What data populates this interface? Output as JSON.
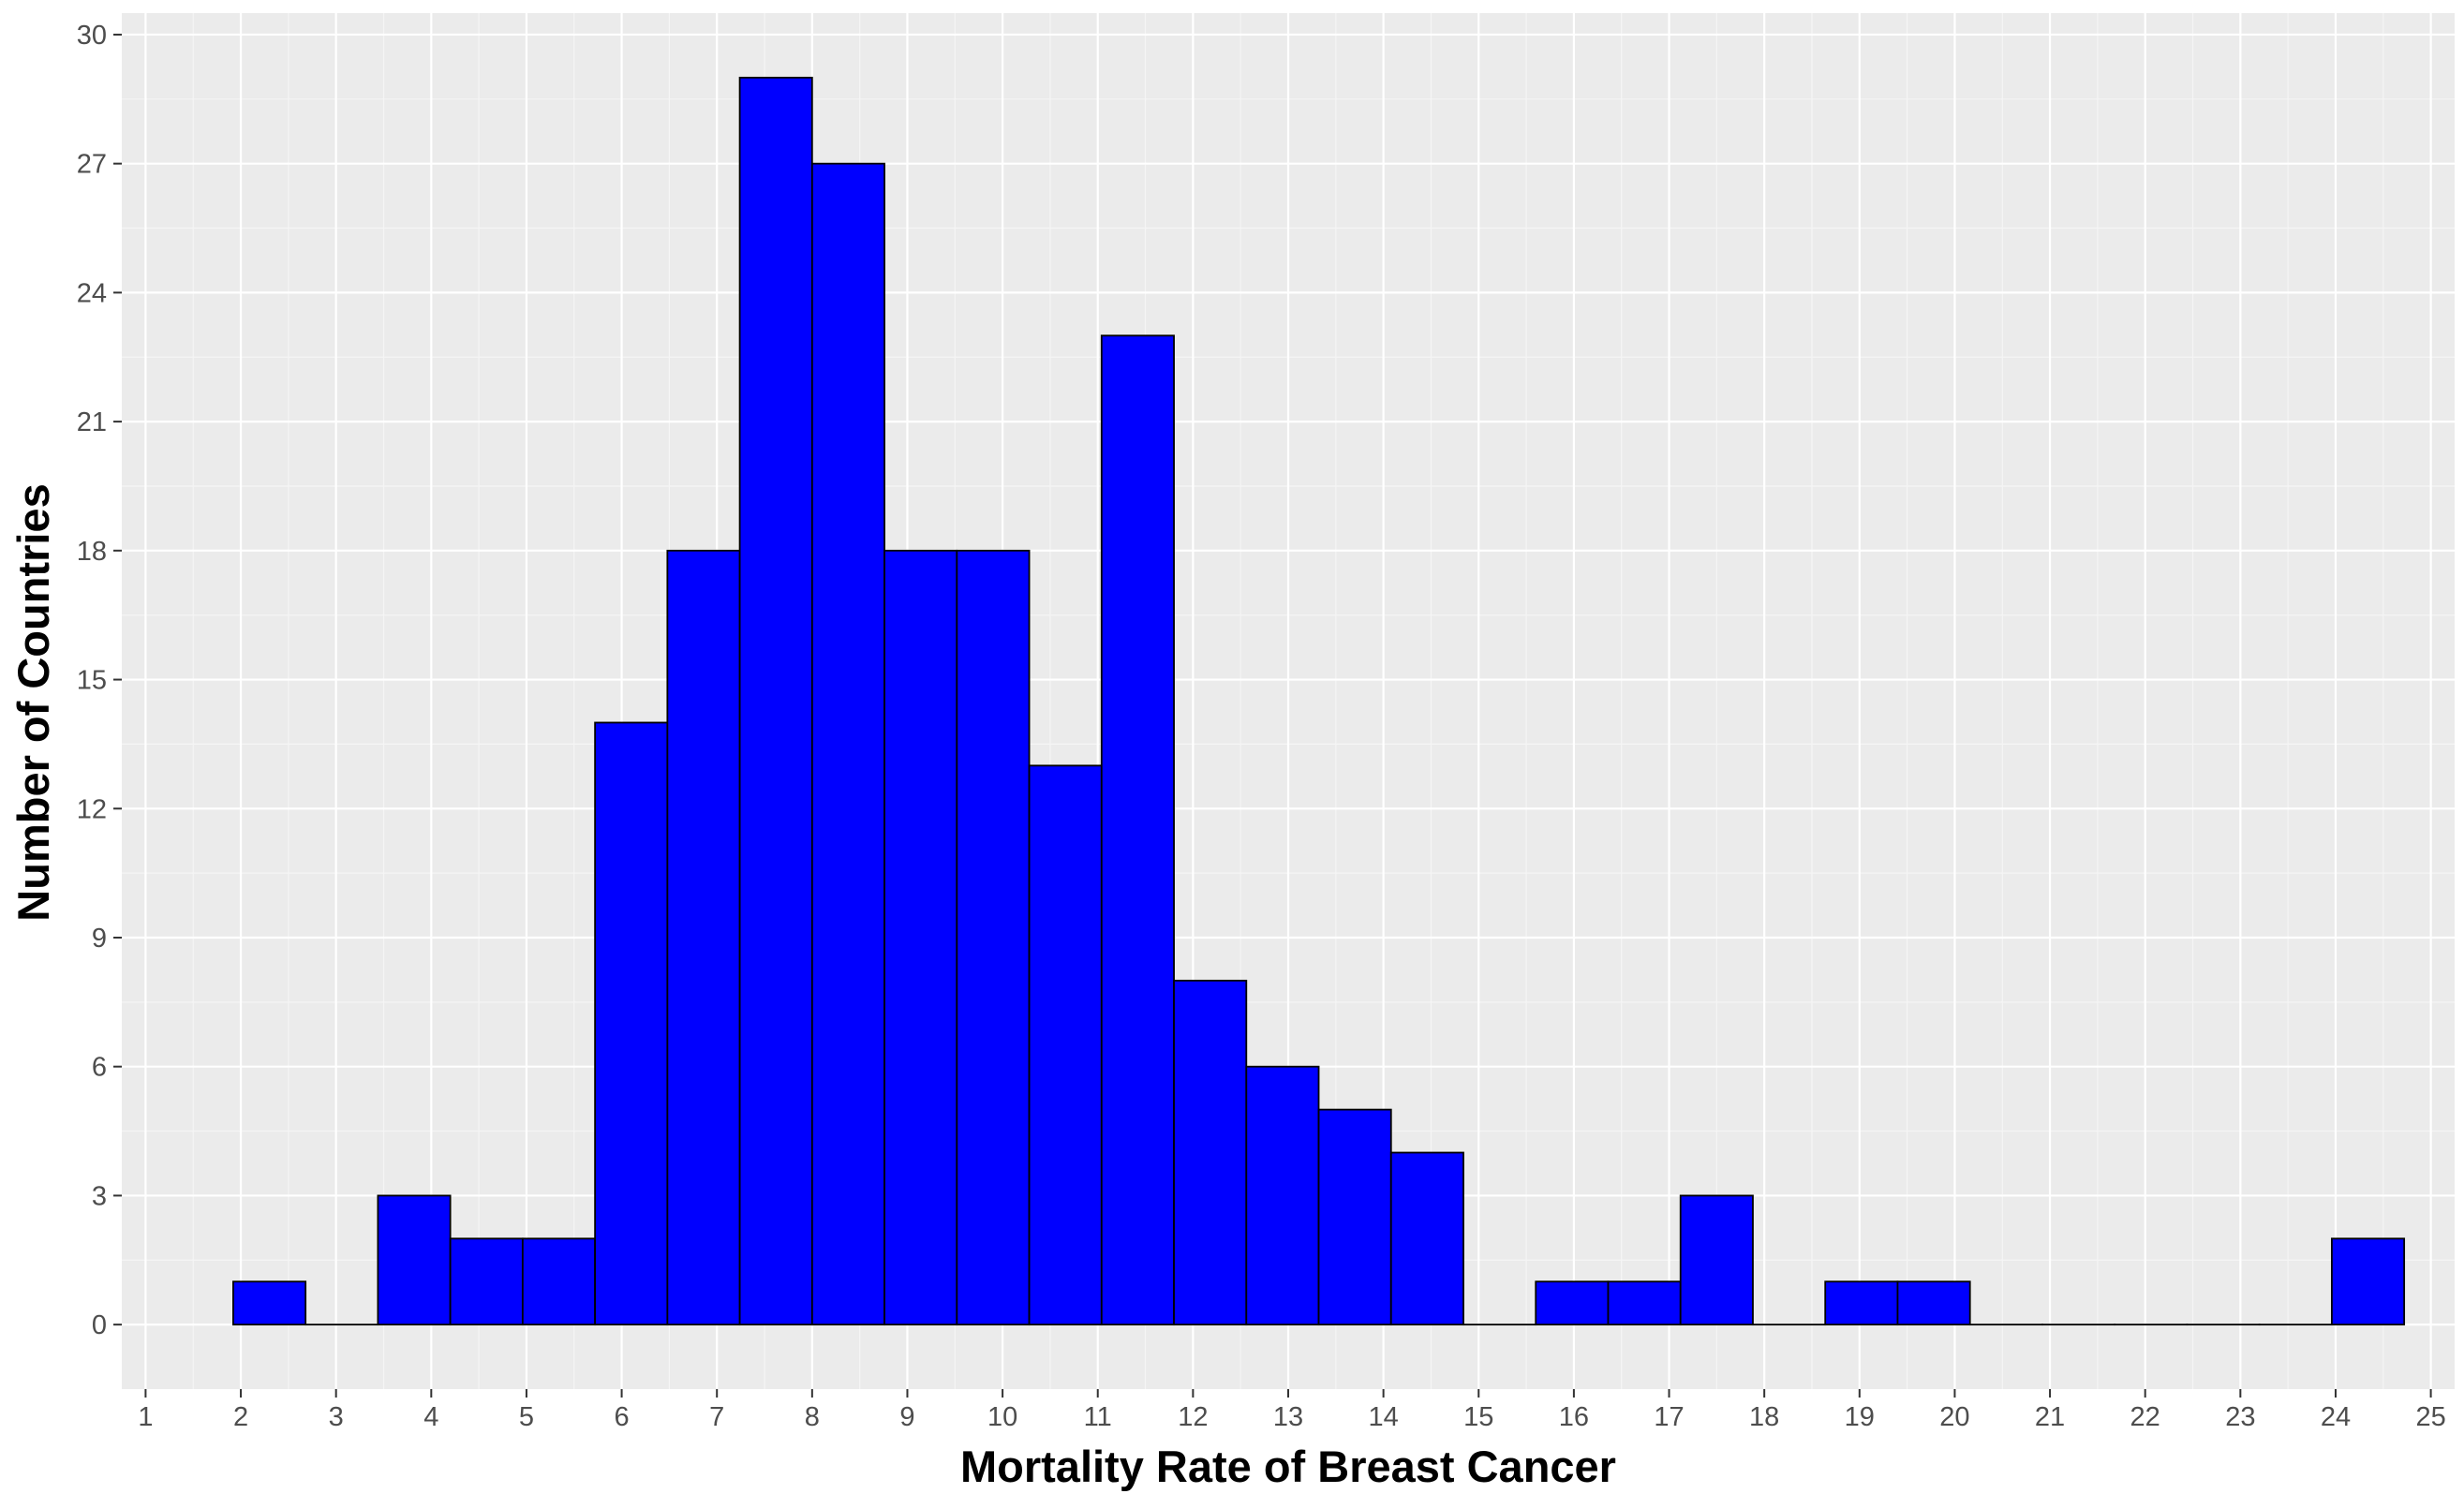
{
  "chart_data": {
    "type": "bar",
    "subtype": "histogram",
    "title": "",
    "xlabel": "Mortality Rate of Breast Cancer",
    "ylabel": "Number of Countries",
    "xlim": [
      0.75,
      25.25
    ],
    "ylim": [
      -1.5,
      30.5
    ],
    "x_ticks": [
      1,
      2,
      3,
      4,
      5,
      6,
      7,
      8,
      9,
      10,
      11,
      12,
      13,
      14,
      15,
      16,
      17,
      18,
      19,
      20,
      21,
      22,
      23,
      24,
      25
    ],
    "y_ticks": [
      0,
      3,
      6,
      9,
      12,
      15,
      18,
      21,
      24,
      27,
      30
    ],
    "bin_width": 0.76,
    "bins": [
      {
        "x_start": 1.92,
        "x_end": 2.68,
        "count": 1
      },
      {
        "x_start": 2.68,
        "x_end": 3.44,
        "count": 0
      },
      {
        "x_start": 3.44,
        "x_end": 4.2,
        "count": 3
      },
      {
        "x_start": 4.2,
        "x_end": 4.96,
        "count": 2
      },
      {
        "x_start": 4.96,
        "x_end": 5.72,
        "count": 2
      },
      {
        "x_start": 5.72,
        "x_end": 6.48,
        "count": 14
      },
      {
        "x_start": 6.48,
        "x_end": 7.24,
        "count": 18
      },
      {
        "x_start": 7.24,
        "x_end": 8.0,
        "count": 29
      },
      {
        "x_start": 8.0,
        "x_end": 8.76,
        "count": 27
      },
      {
        "x_start": 8.76,
        "x_end": 9.52,
        "count": 18
      },
      {
        "x_start": 9.52,
        "x_end": 10.28,
        "count": 18
      },
      {
        "x_start": 10.28,
        "x_end": 11.04,
        "count": 13
      },
      {
        "x_start": 11.04,
        "x_end": 11.8,
        "count": 23
      },
      {
        "x_start": 11.8,
        "x_end": 12.56,
        "count": 8
      },
      {
        "x_start": 12.56,
        "x_end": 13.32,
        "count": 6
      },
      {
        "x_start": 13.32,
        "x_end": 14.08,
        "count": 5
      },
      {
        "x_start": 14.08,
        "x_end": 14.84,
        "count": 4
      },
      {
        "x_start": 14.84,
        "x_end": 15.6,
        "count": 0
      },
      {
        "x_start": 15.6,
        "x_end": 16.36,
        "count": 1
      },
      {
        "x_start": 16.36,
        "x_end": 17.12,
        "count": 1
      },
      {
        "x_start": 17.12,
        "x_end": 17.88,
        "count": 3
      },
      {
        "x_start": 17.88,
        "x_end": 18.64,
        "count": 0
      },
      {
        "x_start": 18.64,
        "x_end": 19.4,
        "count": 1
      },
      {
        "x_start": 19.4,
        "x_end": 20.16,
        "count": 1
      },
      {
        "x_start": 20.16,
        "x_end": 20.92,
        "count": 0
      },
      {
        "x_start": 20.92,
        "x_end": 21.68,
        "count": 0
      },
      {
        "x_start": 21.68,
        "x_end": 22.44,
        "count": 0
      },
      {
        "x_start": 22.44,
        "x_end": 23.2,
        "count": 0
      },
      {
        "x_start": 23.2,
        "x_end": 23.96,
        "count": 0
      },
      {
        "x_start": 23.96,
        "x_end": 24.72,
        "count": 2
      }
    ],
    "grid": true,
    "legend": "none"
  },
  "colors": {
    "bar_fill": "#0000ff",
    "bar_stroke": "#000000",
    "panel_background": "#ebebeb",
    "grid_major": "#ffffff",
    "grid_minor": "#f5f5f5",
    "tick_text": "#4d4d4d",
    "tick_mark": "#333333",
    "axis_title": "#000000"
  }
}
